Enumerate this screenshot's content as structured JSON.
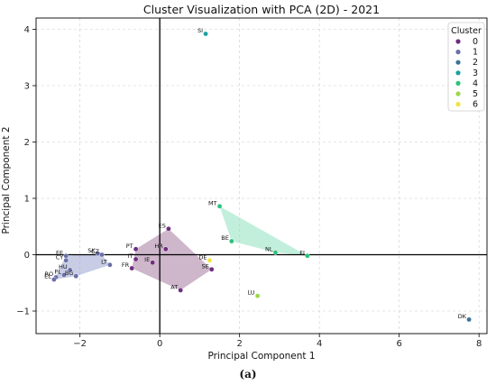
{
  "chart_data": {
    "type": "scatter",
    "title": "Cluster Visualization with PCA (2D) - 2021",
    "xlabel": "Principal Component 1",
    "ylabel": "Principal Component 2",
    "xlim": [
      -3.1,
      8.2
    ],
    "ylim": [
      -1.4,
      4.2
    ],
    "xticks": [
      -2,
      0,
      2,
      4,
      6,
      8
    ],
    "yticks": [
      -1,
      0,
      1,
      2,
      3,
      4
    ],
    "grid": true,
    "legend": {
      "title": "Cluster",
      "position": "top-right",
      "entries": [
        "0",
        "1",
        "2",
        "3",
        "4",
        "5",
        "6"
      ]
    },
    "cluster_colors": [
      "#6f2c7d",
      "#6a6fa8",
      "#3e7196",
      "#1ba09f",
      "#2cc27c",
      "#9cd84a",
      "#f0e442"
    ],
    "hull_colors": {
      "0": "#a67aa0",
      "1": "#9aa3cf",
      "4": "#8fe2c0"
    },
    "points": [
      {
        "label": "SI",
        "x": 1.15,
        "y": 3.92,
        "cluster": 3
      },
      {
        "label": "MT",
        "x": 1.5,
        "y": 0.86,
        "cluster": 4
      },
      {
        "label": "BE",
        "x": 1.8,
        "y": 0.24,
        "cluster": 4
      },
      {
        "label": "NL",
        "x": 2.9,
        "y": 0.04,
        "cluster": 4
      },
      {
        "label": "FI",
        "x": 3.7,
        "y": -0.02,
        "cluster": 4
      },
      {
        "label": "ES",
        "x": 0.22,
        "y": 0.46,
        "cluster": 0
      },
      {
        "label": "PT",
        "x": -0.6,
        "y": 0.1,
        "cluster": 0
      },
      {
        "label": "HR",
        "x": 0.15,
        "y": 0.1,
        "cluster": 0
      },
      {
        "label": "IT",
        "x": -0.6,
        "y": -0.08,
        "cluster": 0
      },
      {
        "label": "IE",
        "x": -0.18,
        "y": -0.14,
        "cluster": 0
      },
      {
        "label": "FR",
        "x": -0.7,
        "y": -0.24,
        "cluster": 0
      },
      {
        "label": "DE",
        "x": 1.25,
        "y": -0.1,
        "cluster": 6
      },
      {
        "label": "SE",
        "x": 1.3,
        "y": -0.26,
        "cluster": 0
      },
      {
        "label": "AT",
        "x": 0.52,
        "y": -0.63,
        "cluster": 0
      },
      {
        "label": "LU",
        "x": 2.45,
        "y": -0.73,
        "cluster": 5
      },
      {
        "label": "DK",
        "x": 7.75,
        "y": -1.15,
        "cluster": 2
      },
      {
        "label": "EE",
        "x": -2.35,
        "y": -0.02,
        "cluster": 1
      },
      {
        "label": "CY",
        "x": -2.35,
        "y": -0.1,
        "cluster": 1
      },
      {
        "label": "SK",
        "x": -1.55,
        "y": 0.02,
        "cluster": 1
      },
      {
        "label": "CZ",
        "x": -1.45,
        "y": 0.0,
        "cluster": 1
      },
      {
        "label": "LT",
        "x": -1.25,
        "y": -0.18,
        "cluster": 1
      },
      {
        "label": "HU",
        "x": -2.25,
        "y": -0.27,
        "cluster": 1
      },
      {
        "label": "PL",
        "x": -2.4,
        "y": -0.36,
        "cluster": 1
      },
      {
        "label": "BG",
        "x": -2.1,
        "y": -0.38,
        "cluster": 1
      },
      {
        "label": "RO",
        "x": -2.6,
        "y": -0.4,
        "cluster": 1
      },
      {
        "label": "EL",
        "x": -2.65,
        "y": -0.44,
        "cluster": 1
      }
    ]
  },
  "caption": "(a)"
}
